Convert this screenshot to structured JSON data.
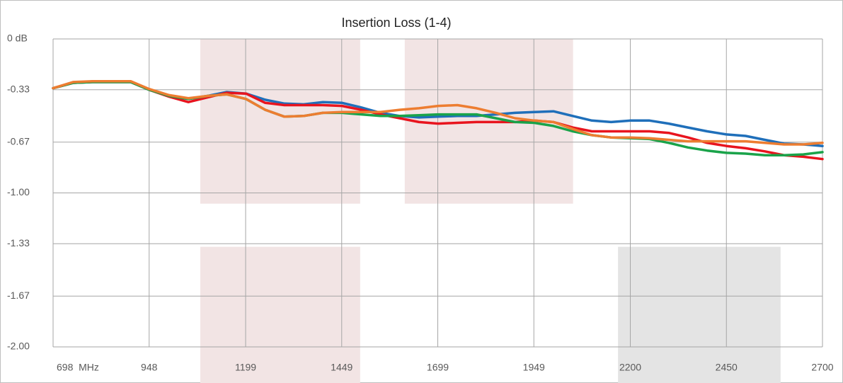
{
  "chart_data": {
    "type": "line",
    "title": "Insertion Loss (1-4)",
    "xlim": [
      698,
      2700
    ],
    "ylim": [
      -2,
      0
    ],
    "xticks": [
      {
        "value": 698,
        "label": "698  MHz"
      },
      948,
      1199,
      1449,
      1699,
      1949,
      2200,
      2450,
      2700
    ],
    "yticks": [
      {
        "value": 0,
        "label": "0 dB"
      },
      -0.33,
      -0.67,
      {
        "value": -1,
        "label": "-1.00"
      },
      -1.33,
      -1.67,
      {
        "value": -2,
        "label": "-2.00"
      }
    ],
    "grid": true,
    "regions": [
      {
        "x": [
          1081,
          1497
        ],
        "y": [
          0,
          -1.07
        ],
        "color": "#f2e4e4"
      },
      {
        "x": [
          1613,
          2051
        ],
        "y": [
          0,
          -1.07
        ],
        "color": "#f2e4e4"
      },
      {
        "x": [
          1081,
          1497
        ],
        "y": [
          -1.35,
          -2.24
        ],
        "color": "#f2e4e4"
      },
      {
        "x": [
          2168,
          2591
        ],
        "y": [
          -1.35,
          -2.24
        ],
        "color": "#e4e4e4"
      }
    ],
    "x": [
      698,
      750,
      800,
      850,
      900,
      948,
      1000,
      1050,
      1100,
      1150,
      1200,
      1250,
      1300,
      1350,
      1400,
      1450,
      1500,
      1550,
      1600,
      1650,
      1700,
      1750,
      1800,
      1850,
      1900,
      1950,
      2000,
      2050,
      2100,
      2150,
      2200,
      2250,
      2300,
      2350,
      2400,
      2450,
      2500,
      2550,
      2600,
      2650,
      2700
    ],
    "series": [
      {
        "color": "#1f6fba",
        "values": [
          -0.32,
          -0.285,
          -0.28,
          -0.28,
          -0.28,
          -0.33,
          -0.37,
          -0.39,
          -0.37,
          -0.345,
          -0.355,
          -0.395,
          -0.42,
          -0.425,
          -0.41,
          -0.415,
          -0.445,
          -0.48,
          -0.5,
          -0.51,
          -0.505,
          -0.5,
          -0.5,
          -0.49,
          -0.48,
          -0.475,
          -0.47,
          -0.5,
          -0.53,
          -0.54,
          -0.53,
          -0.53,
          -0.55,
          -0.575,
          -0.6,
          -0.62,
          -0.63,
          -0.655,
          -0.68,
          -0.685,
          -0.695
        ]
      },
      {
        "color": "#e8141e",
        "values": [
          -0.32,
          -0.285,
          -0.28,
          -0.28,
          -0.28,
          -0.33,
          -0.375,
          -0.41,
          -0.38,
          -0.35,
          -0.355,
          -0.415,
          -0.43,
          -0.43,
          -0.43,
          -0.435,
          -0.46,
          -0.49,
          -0.515,
          -0.54,
          -0.55,
          -0.545,
          -0.54,
          -0.54,
          -0.54,
          -0.53,
          -0.54,
          -0.575,
          -0.6,
          -0.6,
          -0.6,
          -0.6,
          -0.61,
          -0.64,
          -0.675,
          -0.695,
          -0.71,
          -0.73,
          -0.755,
          -0.765,
          -0.78
        ]
      },
      {
        "color": "#1aa34a",
        "values": [
          -0.32,
          -0.285,
          -0.28,
          -0.28,
          -0.28,
          -0.33,
          -0.37,
          -0.39,
          -0.37,
          -0.36,
          -0.39,
          -0.46,
          -0.505,
          -0.5,
          -0.48,
          -0.48,
          -0.49,
          -0.5,
          -0.5,
          -0.495,
          -0.49,
          -0.49,
          -0.49,
          -0.515,
          -0.54,
          -0.545,
          -0.565,
          -0.6,
          -0.625,
          -0.64,
          -0.645,
          -0.65,
          -0.675,
          -0.705,
          -0.725,
          -0.74,
          -0.745,
          -0.755,
          -0.755,
          -0.75,
          -0.735
        ]
      },
      {
        "color": "#ed7d31",
        "values": [
          -0.32,
          -0.28,
          -0.275,
          -0.275,
          -0.275,
          -0.325,
          -0.365,
          -0.385,
          -0.37,
          -0.36,
          -0.39,
          -0.46,
          -0.505,
          -0.5,
          -0.48,
          -0.475,
          -0.475,
          -0.475,
          -0.46,
          -0.45,
          -0.435,
          -0.43,
          -0.45,
          -0.48,
          -0.515,
          -0.53,
          -0.54,
          -0.585,
          -0.625,
          -0.64,
          -0.64,
          -0.645,
          -0.655,
          -0.665,
          -0.665,
          -0.665,
          -0.665,
          -0.675,
          -0.685,
          -0.685,
          -0.675
        ]
      }
    ]
  }
}
